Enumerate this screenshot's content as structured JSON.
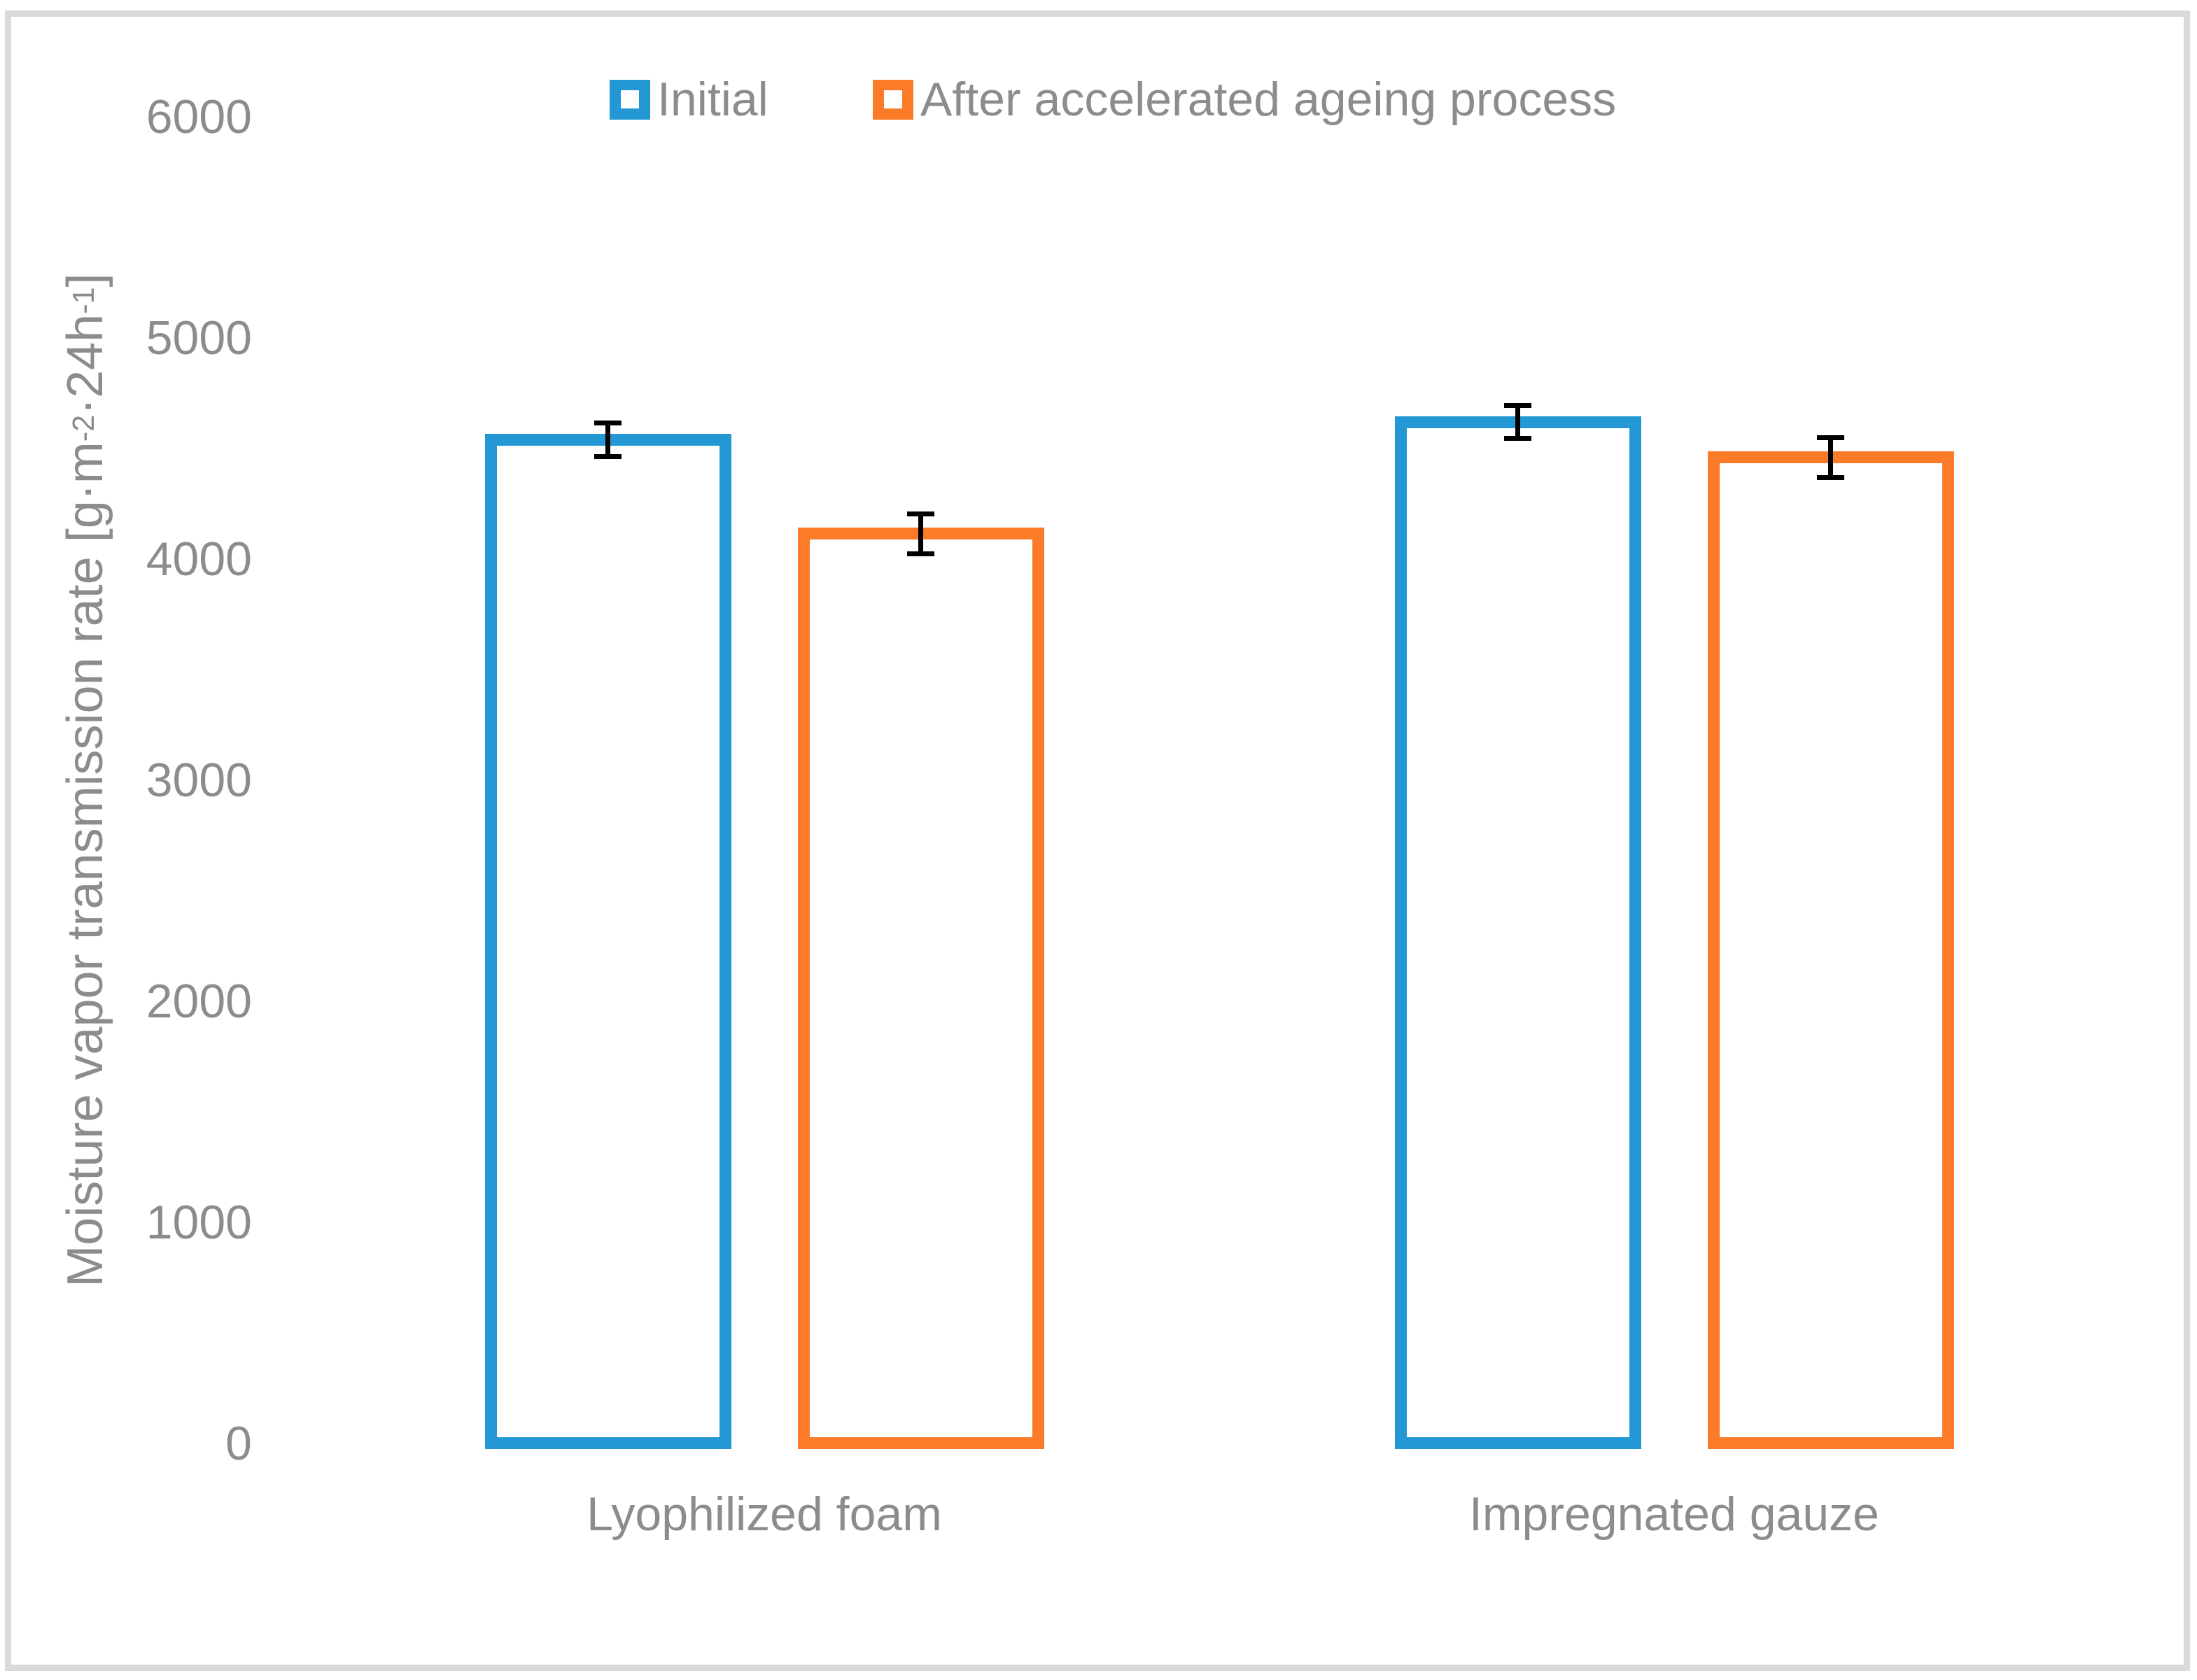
{
  "figure": {
    "background_color": "#FFFFFF",
    "frame_border_color": "#DADADA",
    "text_color": "#8C8C8C",
    "error_bar_color": "#000000"
  },
  "legend": {
    "items": [
      {
        "label": "Initial",
        "color": "#2398D4"
      },
      {
        "label": "After accelerated ageing process",
        "color": "#FB7B28"
      }
    ]
  },
  "y_axis": {
    "title_parts": {
      "0": "Moisture vapor transmission rate [g·m",
      "1": "-2",
      "2": "·24h",
      "3": "-1",
      "4": "]"
    },
    "tick_labels": [
      "0",
      "1000",
      "2000",
      "3000",
      "4000",
      "5000",
      "6000"
    ]
  },
  "chart_data": {
    "type": "bar",
    "bar_style": "outlined-hollow",
    "title": "",
    "xlabel": "",
    "ylabel": "Moisture vapor transmission rate [g·m⁻²·24h⁻¹]",
    "categories": [
      "Lyophilized foam",
      "Impregnated gauze"
    ],
    "series": [
      {
        "name": "Initial",
        "color": "#2398D4",
        "values": [
          4540,
          4620
        ],
        "errors": [
          75,
          75
        ]
      },
      {
        "name": "After accelerated ageing process",
        "color": "#FB7B28",
        "values": [
          4115,
          4460
        ],
        "errors": [
          90,
          90
        ]
      }
    ],
    "ylim": [
      0,
      6000
    ],
    "yticks": [
      0,
      1000,
      2000,
      3000,
      4000,
      5000,
      6000
    ],
    "grid": false,
    "axis_lines": false,
    "error_bars": true,
    "legend_position": "top-center"
  }
}
